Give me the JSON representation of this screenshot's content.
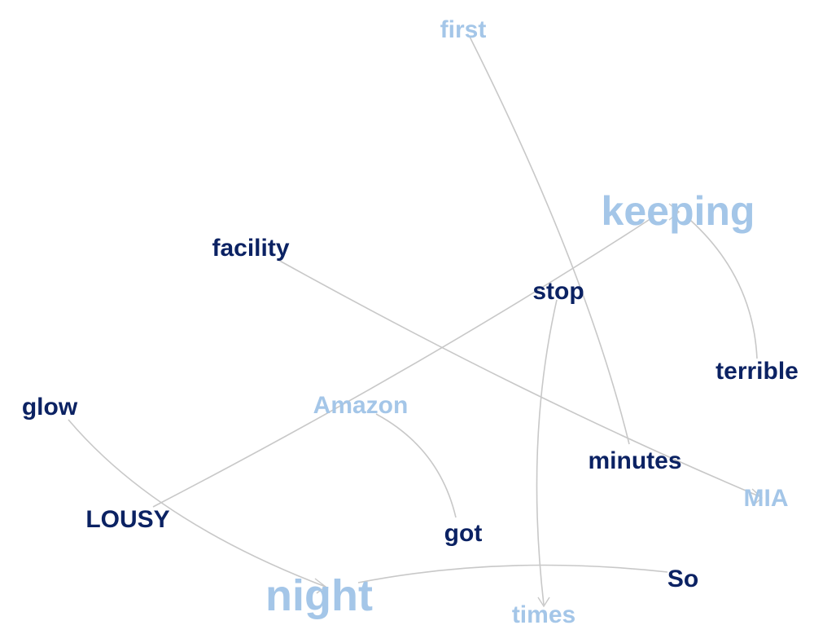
{
  "colors": {
    "dark": "#0b2263",
    "light": "#a4c6e8",
    "edge": "#c8c8c8"
  },
  "words": {
    "first": "first",
    "keeping": "keeping",
    "facility": "facility",
    "stop": "stop",
    "terrible": "terrible",
    "glow": "glow",
    "amazon": "Amazon",
    "minutes": "minutes",
    "mia": "MIA",
    "lousy": "LOUSY",
    "got": "got",
    "so": "So",
    "night": "night",
    "times": "times"
  }
}
